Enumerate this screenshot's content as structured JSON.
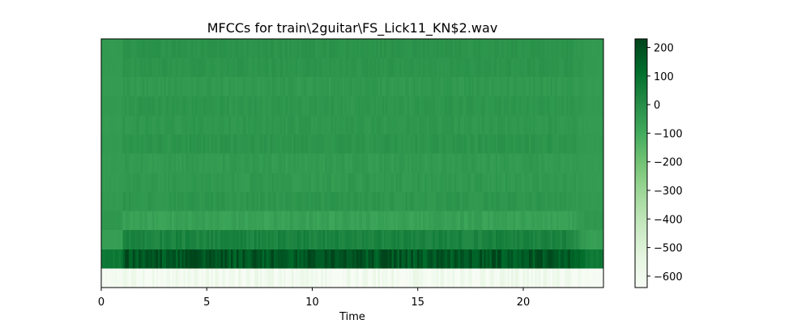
{
  "chart_data": {
    "type": "heatmap",
    "title": "MFCCs for train\\2guitar\\FS_Lick11_KN$2.wav",
    "xlabel": "Time",
    "ylabel": "",
    "xlim": [
      0,
      23.8
    ],
    "x_ticks": [
      0,
      5,
      10,
      15,
      20
    ],
    "x_tick_labels": [
      "0",
      "5",
      "10",
      "15",
      "20"
    ],
    "n_coefficients": 13,
    "n_frames": 256,
    "active_time_range": [
      1.05,
      22.2
    ],
    "colormap": "Greens",
    "colorbar": {
      "ticks": [
        200,
        100,
        0,
        -100,
        -200,
        -300,
        -400,
        -500,
        -600
      ],
      "tick_labels": [
        "200",
        "100",
        "0",
        "−100",
        "−200",
        "−300",
        "−400",
        "−500",
        "−600"
      ],
      "range": [
        -640,
        230
      ]
    },
    "coefficient_means": [
      -610,
      185,
      40,
      -60,
      -25,
      -35,
      -40,
      -20,
      -30,
      -25,
      -35,
      -20,
      -15
    ],
    "coefficient_variation": [
      60,
      60,
      25,
      18,
      15,
      15,
      14,
      14,
      13,
      13,
      13,
      12,
      12
    ],
    "silence_values": [
      -625,
      75,
      -55,
      -30,
      -40,
      -45,
      -45,
      -40,
      -45,
      -40,
      -45,
      -40,
      -40
    ]
  }
}
